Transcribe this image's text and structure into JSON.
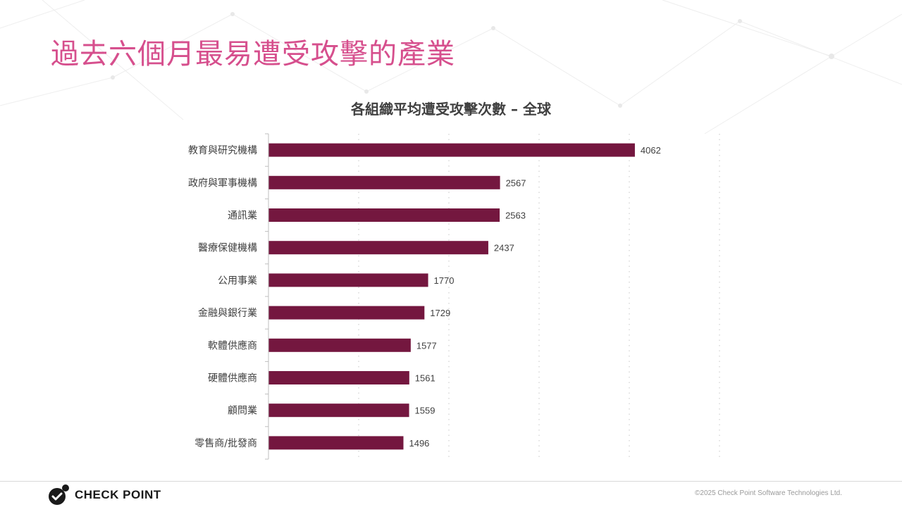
{
  "slide": {
    "title": "過去六個月最易遭受攻擊的產業",
    "title_color": "#d64f8d"
  },
  "chart_data": {
    "type": "bar",
    "orientation": "horizontal",
    "title": "各組織平均遭受攻擊次數 – 全球",
    "categories": [
      "教育與研究機構",
      "政府與軍事機構",
      "通訊業",
      "醫療保健機構",
      "公用事業",
      "金融與銀行業",
      "軟體供應商",
      "硬體供應商",
      "顧問業",
      "零售商/批發商"
    ],
    "values": [
      4062,
      2567,
      2563,
      2437,
      1770,
      1729,
      1577,
      1561,
      1559,
      1496
    ],
    "xlim": [
      0,
      5000
    ],
    "grid": true,
    "data_labels": true,
    "bar_color": "#74173f"
  },
  "footer": {
    "brand": "CHECK POINT",
    "copyright": "©2025 Check Point Software Technologies Ltd."
  }
}
